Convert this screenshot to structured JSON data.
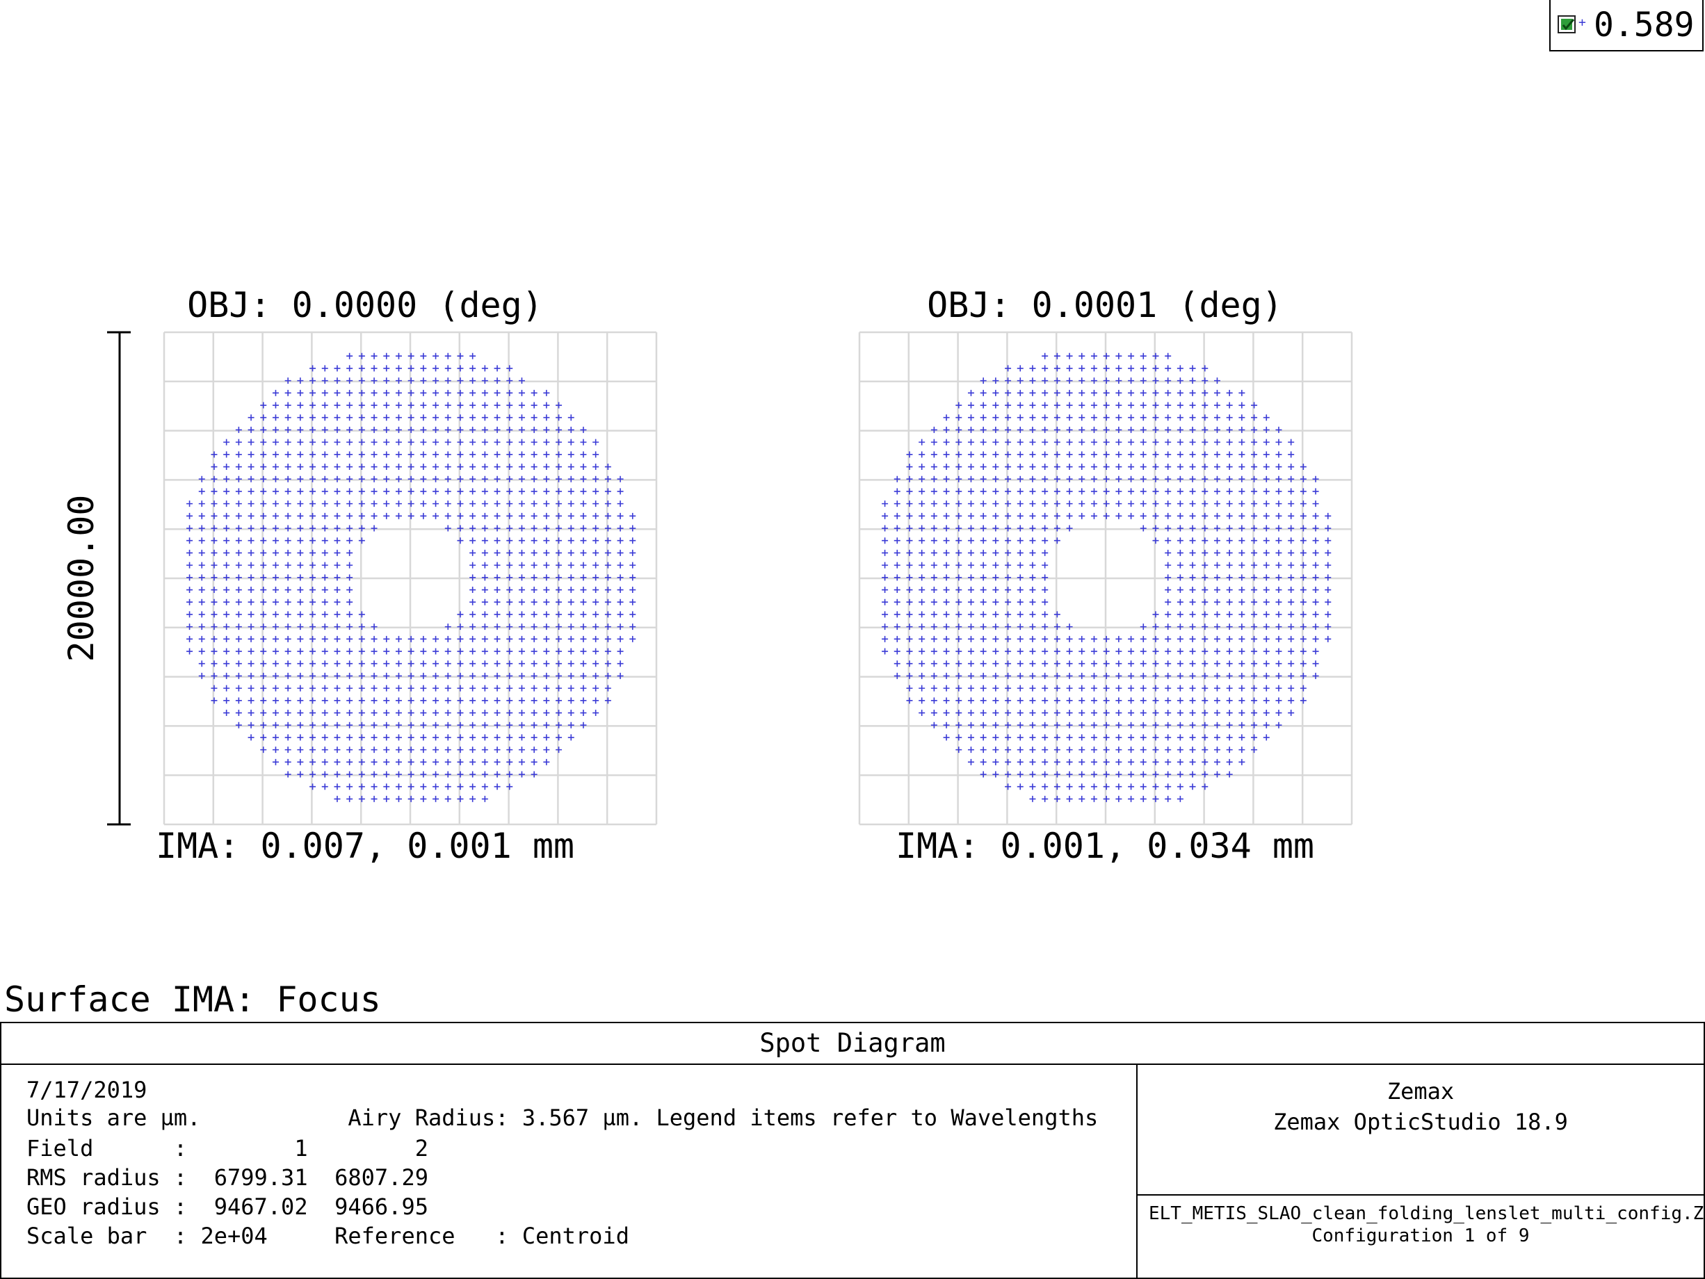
{
  "legend": {
    "checked": true,
    "wavelength": "0.589"
  },
  "spot_colors": {
    "spot": "#3a3ad6",
    "grid": "#d8d8d8",
    "frame": "#000000"
  },
  "scale_bar": {
    "label": "20000.00"
  },
  "chart_data": [
    {
      "type": "scatter",
      "title": "OBJ: 0.0000 (deg)",
      "subtitle": "IMA: 0.007, 0.001 mm",
      "marker": "+",
      "pattern": "annular square-grid ray fan",
      "grid_divisions": 10,
      "outer_radius": 9467.02,
      "inner_radius": 2400,
      "ray_spacing": 500,
      "xlim": [
        -10000,
        10000
      ],
      "ylim": [
        -10000,
        10000
      ]
    },
    {
      "type": "scatter",
      "title": "OBJ: 0.0001 (deg)",
      "subtitle": "IMA: 0.001, 0.034 mm",
      "marker": "+",
      "pattern": "annular square-grid ray fan",
      "grid_divisions": 10,
      "outer_radius": 9466.95,
      "inner_radius": 2400,
      "ray_spacing": 500,
      "xlim": [
        -10000,
        10000
      ],
      "ylim": [
        -10000,
        10000
      ]
    }
  ],
  "surface_title": "Surface IMA: Focus",
  "footer": {
    "title": "Spot Diagram",
    "date": "7/17/2019",
    "units_line": "Units are µm.           Airy Radius: 3.567 µm. Legend items refer to Wavelengths",
    "field_line": "Field      :        1        2",
    "rms_line": "RMS radius :  6799.31  6807.29",
    "geo_line": "GEO radius :  9467.02  9466.95",
    "scale_line": "Scale bar  : 2e+04     Reference   : Centroid",
    "company": "Zemax",
    "product": "Zemax OpticStudio 18.9",
    "file": "ELT_METIS_SLAO_clean_folding_lenslet_multi_config.ZMX",
    "config": "Configuration 1 of 9"
  }
}
